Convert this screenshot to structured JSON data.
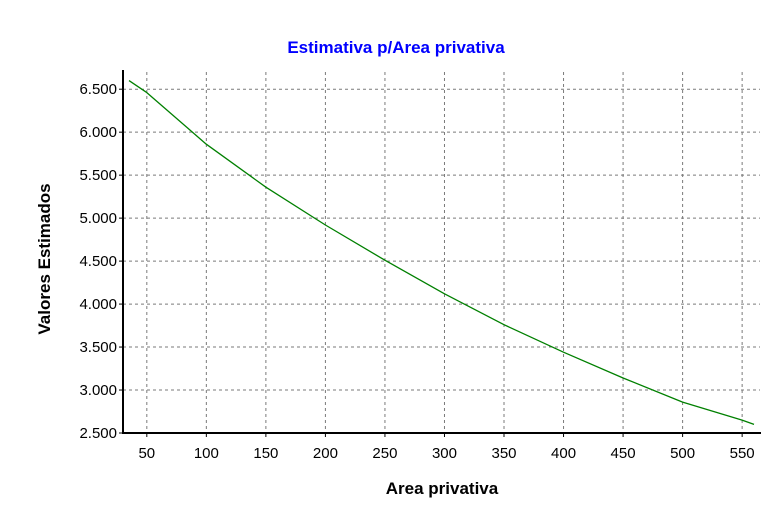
{
  "chart_data": {
    "type": "line",
    "title": "Estimativa p/Area privativa",
    "xlabel": "Area privativa",
    "ylabel": "Valores Estimados",
    "xlim": [
      30,
      565
    ],
    "ylim": [
      2500,
      6700
    ],
    "x_ticks": [
      50,
      100,
      150,
      200,
      250,
      300,
      350,
      400,
      450,
      500,
      550
    ],
    "x_tick_labels": [
      "50",
      "100",
      "150",
      "200",
      "250",
      "300",
      "350",
      "400",
      "450",
      "500",
      "550"
    ],
    "y_ticks": [
      2500,
      3000,
      3500,
      4000,
      4500,
      5000,
      5500,
      6000,
      6500
    ],
    "y_tick_labels": [
      "2.500",
      "3.000",
      "3.500",
      "4.000",
      "4.500",
      "5.000",
      "5.500",
      "6.000",
      "6.500"
    ],
    "grid": true,
    "series": [
      {
        "color": "#008000",
        "x": [
          35,
          50,
          100,
          150,
          200,
          250,
          300,
          350,
          400,
          450,
          500,
          550,
          560
        ],
        "y": [
          6600,
          6460,
          5860,
          5360,
          4920,
          4510,
          4120,
          3760,
          3440,
          3140,
          2860,
          2650,
          2600
        ]
      }
    ]
  },
  "colors": {
    "title": "#0000ff",
    "axes": "#000000",
    "grid": "#7a7a7a",
    "background": "#ffffff"
  }
}
